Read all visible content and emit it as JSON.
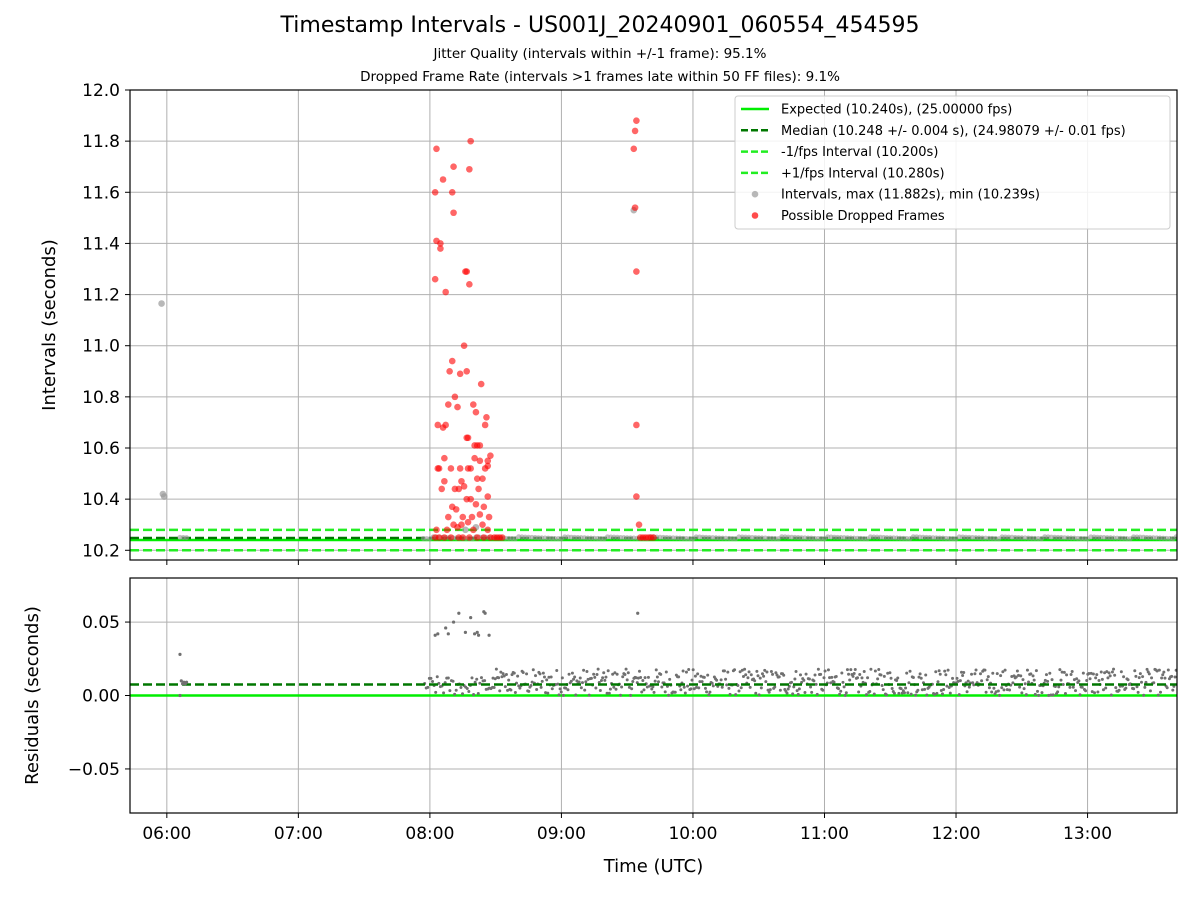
{
  "figure": {
    "title": "Timestamp Intervals - US001J_20240901_060554_454595",
    "subtitle_jitter": "Jitter Quality (intervals within +/-1 frame): 95.1%",
    "subtitle_dropped": "Dropped Frame Rate (intervals >1 frames late within 50 FF files): 9.1%"
  },
  "colors": {
    "expected": "#00ee00",
    "median": "#007700",
    "fps_band": "#22ee22",
    "intervals": "#9a9a9a",
    "dropped": "#ff0000",
    "residuals": "#707070",
    "grid": "#b0b0b0"
  },
  "chart_data": [
    {
      "id": "intervals",
      "type": "scatter",
      "xlabel": "",
      "ylabel": "Intervals (seconds)",
      "xlim": [
        5.72,
        13.68
      ],
      "ylim": [
        10.162,
        12.0
      ],
      "yticks": [
        10.2,
        10.4,
        10.6,
        10.8,
        11.0,
        11.2,
        11.4,
        11.6,
        11.8,
        12.0
      ],
      "ytick_labels": [
        "10.2",
        "10.4",
        "10.6",
        "10.8",
        "11.0",
        "11.2",
        "11.4",
        "11.6",
        "11.8",
        "12.0"
      ],
      "xticks": [
        6,
        7,
        8,
        9,
        10,
        11,
        12,
        13
      ],
      "grid": true,
      "legend_position": "top-right",
      "legend": [
        {
          "label": "Expected (10.240s), (25.00000 fps)",
          "kind": "line-solid",
          "color": "#00ee00"
        },
        {
          "label": "Median (10.248 +/- 0.004 s), (24.98079 +/- 0.01 fps)",
          "kind": "line-dashed",
          "color": "#007700"
        },
        {
          "label": "-1/fps Interval (10.200s)",
          "kind": "line-dashed",
          "color": "#22ee22"
        },
        {
          "label": "+1/fps Interval (10.280s)",
          "kind": "line-dashed",
          "color": "#22ee22"
        },
        {
          "label": "Intervals, max (11.882s), min (10.239s)",
          "kind": "point",
          "color": "#9a9a9a"
        },
        {
          "label": "Possible Dropped Frames",
          "kind": "point",
          "color": "#ff0000"
        }
      ],
      "hlines": {
        "expected": 10.24,
        "median": 10.248,
        "minus_fps": 10.2,
        "plus_fps": 10.28
      },
      "series": [
        {
          "name": "Intervals, max (11.882s), min (10.239s)",
          "points": [
            [
              5.96,
              11.165
            ],
            [
              5.97,
              10.42
            ],
            [
              5.98,
              10.41
            ],
            [
              9.55,
              11.53
            ],
            [
              8.27,
              10.28
            ],
            [
              8.35,
              10.29
            ]
          ]
        },
        {
          "name": "Possible Dropped Frames",
          "points": [
            [
              8.05,
              11.77
            ],
            [
              8.18,
              11.7
            ],
            [
              8.31,
              11.8
            ],
            [
              8.3,
              11.69
            ],
            [
              8.1,
              11.65
            ],
            [
              8.04,
              11.6
            ],
            [
              8.17,
              11.6
            ],
            [
              8.18,
              11.52
            ],
            [
              8.05,
              11.41
            ],
            [
              8.08,
              11.4
            ],
            [
              8.08,
              11.38
            ],
            [
              8.27,
              11.29
            ],
            [
              8.28,
              11.29
            ],
            [
              8.04,
              11.26
            ],
            [
              8.3,
              11.24
            ],
            [
              8.12,
              11.21
            ],
            [
              8.26,
              11.0
            ],
            [
              8.17,
              10.94
            ],
            [
              8.15,
              10.9
            ],
            [
              8.23,
              10.89
            ],
            [
              8.28,
              10.9
            ],
            [
              8.39,
              10.85
            ],
            [
              8.19,
              10.8
            ],
            [
              8.14,
              10.77
            ],
            [
              8.21,
              10.76
            ],
            [
              8.33,
              10.77
            ],
            [
              8.35,
              10.74
            ],
            [
              8.43,
              10.72
            ],
            [
              8.06,
              10.69
            ],
            [
              8.1,
              10.68
            ],
            [
              8.12,
              10.69
            ],
            [
              8.42,
              10.69
            ],
            [
              8.28,
              10.64
            ],
            [
              8.29,
              10.64
            ],
            [
              8.34,
              10.61
            ],
            [
              8.36,
              10.61
            ],
            [
              8.38,
              10.61
            ],
            [
              8.46,
              10.57
            ],
            [
              8.11,
              10.56
            ],
            [
              8.34,
              10.56
            ],
            [
              8.38,
              10.55
            ],
            [
              8.44,
              10.55
            ],
            [
              8.06,
              10.52
            ],
            [
              8.07,
              10.52
            ],
            [
              8.16,
              10.52
            ],
            [
              8.23,
              10.52
            ],
            [
              8.29,
              10.52
            ],
            [
              8.31,
              10.52
            ],
            [
              8.42,
              10.52
            ],
            [
              8.44,
              10.53
            ],
            [
              8.11,
              10.47
            ],
            [
              8.24,
              10.47
            ],
            [
              8.36,
              10.48
            ],
            [
              8.4,
              10.48
            ],
            [
              8.09,
              10.44
            ],
            [
              8.19,
              10.44
            ],
            [
              8.22,
              10.44
            ],
            [
              8.26,
              10.45
            ],
            [
              8.37,
              10.44
            ],
            [
              8.28,
              10.4
            ],
            [
              8.31,
              10.4
            ],
            [
              8.44,
              10.41
            ],
            [
              8.17,
              10.37
            ],
            [
              8.2,
              10.36
            ],
            [
              8.35,
              10.38
            ],
            [
              8.41,
              10.37
            ],
            [
              8.14,
              10.33
            ],
            [
              8.25,
              10.33
            ],
            [
              8.32,
              10.33
            ],
            [
              8.38,
              10.34
            ],
            [
              8.45,
              10.33
            ],
            [
              8.18,
              10.3
            ],
            [
              8.24,
              10.3
            ],
            [
              8.29,
              10.31
            ],
            [
              8.4,
              10.3
            ],
            [
              8.05,
              10.28
            ],
            [
              8.13,
              10.28
            ],
            [
              8.21,
              10.29
            ],
            [
              8.33,
              10.28
            ],
            [
              8.44,
              10.28
            ],
            [
              8.04,
              10.25
            ],
            [
              8.07,
              10.25
            ],
            [
              8.11,
              10.25
            ],
            [
              8.16,
              10.25
            ],
            [
              8.22,
              10.25
            ],
            [
              8.25,
              10.25
            ],
            [
              8.3,
              10.25
            ],
            [
              8.36,
              10.25
            ],
            [
              8.41,
              10.25
            ],
            [
              8.46,
              10.25
            ],
            [
              8.49,
              10.25
            ],
            [
              8.51,
              10.25
            ],
            [
              8.53,
              10.25
            ],
            [
              8.55,
              10.25
            ],
            [
              9.57,
              11.88
            ],
            [
              9.56,
              11.84
            ],
            [
              9.55,
              11.77
            ],
            [
              9.56,
              11.54
            ],
            [
              9.57,
              11.29
            ],
            [
              9.57,
              10.69
            ],
            [
              9.57,
              10.41
            ],
            [
              9.59,
              10.3
            ],
            [
              9.6,
              10.25
            ],
            [
              9.62,
              10.25
            ],
            [
              9.64,
              10.25
            ],
            [
              9.66,
              10.25
            ],
            [
              9.68,
              10.25
            ],
            [
              9.7,
              10.25
            ]
          ]
        }
      ]
    },
    {
      "id": "residuals",
      "type": "scatter",
      "xlabel": "Time (UTC)",
      "ylabel": "Residuals (seconds)",
      "xlim": [
        5.72,
        13.68
      ],
      "ylim": [
        -0.08,
        0.08
      ],
      "yticks": [
        -0.05,
        0.0,
        0.05
      ],
      "ytick_labels": [
        "−0.05",
        "0.00",
        "0.05"
      ],
      "xticks": [
        6,
        7,
        8,
        9,
        10,
        11,
        12,
        13
      ],
      "xtick_labels": [
        "06:00",
        "07:00",
        "08:00",
        "09:00",
        "10:00",
        "11:00",
        "12:00",
        "13:00"
      ],
      "grid": true,
      "hlines": {
        "zero": 0.0,
        "median": 0.0075
      },
      "series": [
        {
          "name": "",
          "points": [
            [
              6.1,
              0.028
            ],
            [
              6.11,
              0.01
            ],
            [
              6.12,
              0.008
            ],
            [
              6.13,
              0.009
            ],
            [
              6.14,
              0.008
            ],
            [
              6.15,
              0.009
            ],
            [
              6.1,
              0.0
            ],
            [
              8.04,
              0.041
            ],
            [
              8.06,
              0.042
            ],
            [
              8.12,
              0.046
            ],
            [
              8.14,
              0.042
            ],
            [
              8.18,
              0.05
            ],
            [
              8.22,
              0.056
            ],
            [
              8.27,
              0.043
            ],
            [
              8.31,
              0.053
            ],
            [
              8.34,
              0.042
            ],
            [
              8.36,
              0.043
            ],
            [
              8.37,
              0.041
            ],
            [
              8.41,
              0.057
            ],
            [
              8.42,
              0.056
            ],
            [
              8.45,
              0.041
            ],
            [
              9.58,
              0.056
            ]
          ],
          "dense_band": {
            "x": [
              8.48,
              13.68
            ],
            "y": [
              0.0,
              0.018
            ]
          }
        }
      ]
    }
  ]
}
